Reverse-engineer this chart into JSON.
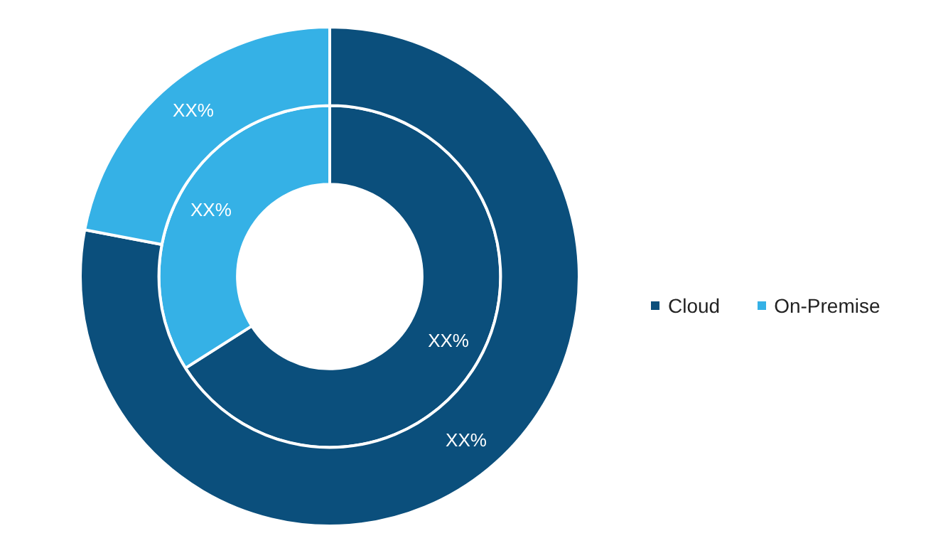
{
  "chart_data": {
    "type": "donut",
    "categories": [
      "Cloud",
      "On-Premise"
    ],
    "colors": [
      "#0b4f7c",
      "#35b1e6"
    ],
    "series": [
      {
        "values": [
          78,
          22
        ],
        "value_labels": [
          "XX%",
          "XX%"
        ]
      },
      {
        "values": [
          66,
          34
        ],
        "value_labels": [
          "XX%",
          "XX%"
        ]
      }
    ],
    "legend": "right"
  }
}
